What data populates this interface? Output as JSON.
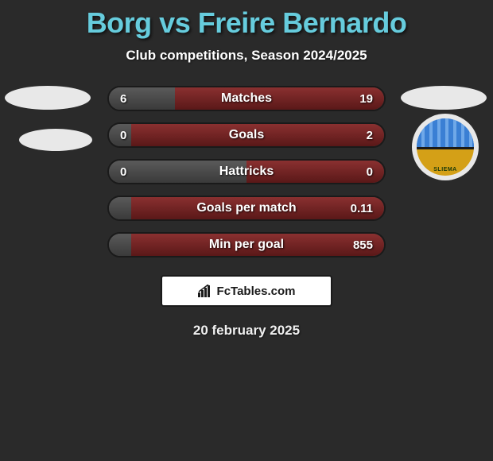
{
  "title": "Borg vs Freire Bernardo",
  "subtitle": "Club competitions, Season 2024/2025",
  "date": "20 february 2025",
  "footer": {
    "label": "FcTables.com"
  },
  "colors": {
    "background": "#2a2a2a",
    "title": "#66ccdd",
    "text": "#ffffff",
    "left_fill": "#4a4a4a",
    "right_fill": "#7a2424",
    "row_border": "#1a1a1a"
  },
  "club_logo": {
    "top_color": "#3a7fd4",
    "stripe_color": "#6fa8e8",
    "bottom_color": "#d4a017",
    "text": "SLIEMA"
  },
  "rows": [
    {
      "label": "Matches",
      "left": "6",
      "right": "19",
      "left_pct": 24,
      "right_pct": 76
    },
    {
      "label": "Goals",
      "left": "0",
      "right": "2",
      "left_pct": 8,
      "right_pct": 92
    },
    {
      "label": "Hattricks",
      "left": "0",
      "right": "0",
      "left_pct": 50,
      "right_pct": 50
    },
    {
      "label": "Goals per match",
      "left": "",
      "right": "0.11",
      "left_pct": 8,
      "right_pct": 92
    },
    {
      "label": "Min per goal",
      "left": "",
      "right": "855",
      "left_pct": 8,
      "right_pct": 92
    }
  ]
}
